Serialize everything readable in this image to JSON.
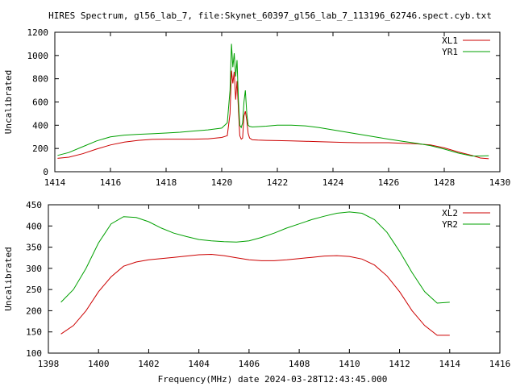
{
  "title": "HIRES Spectrum, gl56_lab_7, file:Skynet_60397_gl56_lab_7_113196_62746.spect.cyb.txt",
  "xlabel": "Frequency(MHz) date 2024-03-28T12:43:45.000",
  "colors": {
    "red": "#cc0000",
    "green": "#00a000"
  },
  "chart_data": [
    {
      "type": "line",
      "ylabel": "Uncalibrated",
      "xlim": [
        1414,
        1430
      ],
      "ylim": [
        0,
        1200
      ],
      "xticks": [
        1414,
        1416,
        1418,
        1420,
        1422,
        1424,
        1426,
        1428,
        1430
      ],
      "yticks": [
        0,
        200,
        400,
        600,
        800,
        1000,
        1200
      ],
      "legend_position": "top-right",
      "series": [
        {
          "name": "XL1",
          "color": "#cc0000",
          "x": [
            1414.1,
            1414.5,
            1415.0,
            1415.5,
            1416.0,
            1416.5,
            1417.0,
            1417.5,
            1418.0,
            1418.5,
            1419.0,
            1419.5,
            1420.0,
            1420.2,
            1420.3,
            1420.35,
            1420.4,
            1420.45,
            1420.5,
            1420.55,
            1420.6,
            1420.65,
            1420.7,
            1420.75,
            1420.8,
            1420.85,
            1420.9,
            1420.95,
            1421.0,
            1421.1,
            1421.3,
            1421.6,
            1422.0,
            1422.5,
            1423.0,
            1423.5,
            1424.0,
            1424.5,
            1425.0,
            1425.5,
            1426.0,
            1426.5,
            1427.0,
            1427.5,
            1428.0,
            1428.5,
            1429.0,
            1429.3,
            1429.6
          ],
          "y": [
            115,
            125,
            155,
            195,
            230,
            255,
            270,
            278,
            280,
            280,
            280,
            283,
            295,
            310,
            500,
            870,
            760,
            860,
            620,
            780,
            540,
            310,
            280,
            290,
            480,
            520,
            440,
            330,
            290,
            275,
            272,
            270,
            268,
            265,
            262,
            258,
            255,
            252,
            250,
            250,
            250,
            245,
            240,
            230,
            205,
            170,
            140,
            118,
            112
          ]
        },
        {
          "name": "YR1",
          "color": "#00a000",
          "x": [
            1414.1,
            1414.5,
            1415.0,
            1415.5,
            1416.0,
            1416.5,
            1417.0,
            1417.5,
            1418.0,
            1418.5,
            1419.0,
            1419.5,
            1420.0,
            1420.2,
            1420.3,
            1420.35,
            1420.4,
            1420.45,
            1420.5,
            1420.55,
            1420.6,
            1420.65,
            1420.7,
            1420.75,
            1420.8,
            1420.85,
            1420.9,
            1420.95,
            1421.0,
            1421.1,
            1421.3,
            1421.6,
            1422.0,
            1422.5,
            1423.0,
            1423.5,
            1424.0,
            1424.5,
            1425.0,
            1425.5,
            1426.0,
            1426.5,
            1427.0,
            1427.5,
            1428.0,
            1428.5,
            1429.0,
            1429.3,
            1429.6
          ],
          "y": [
            140,
            165,
            215,
            265,
            300,
            315,
            322,
            327,
            333,
            340,
            350,
            360,
            375,
            420,
            700,
            1100,
            900,
            1020,
            820,
            960,
            620,
            400,
            380,
            420,
            600,
            700,
            500,
            400,
            390,
            385,
            388,
            392,
            400,
            400,
            395,
            380,
            360,
            340,
            320,
            300,
            280,
            262,
            245,
            225,
            195,
            160,
            135,
            135,
            138
          ]
        }
      ]
    },
    {
      "type": "line",
      "ylabel": "Uncalibrated",
      "xlim": [
        1398,
        1416
      ],
      "ylim": [
        100,
        450
      ],
      "xticks": [
        1398,
        1400,
        1402,
        1404,
        1406,
        1408,
        1410,
        1412,
        1414,
        1416
      ],
      "yticks": [
        100,
        150,
        200,
        250,
        300,
        350,
        400,
        450
      ],
      "legend_position": "top-right",
      "series": [
        {
          "name": "XL2",
          "color": "#cc0000",
          "x": [
            1398.5,
            1399.0,
            1399.5,
            1400.0,
            1400.5,
            1401.0,
            1401.5,
            1402.0,
            1402.5,
            1403.0,
            1403.5,
            1404.0,
            1404.5,
            1405.0,
            1405.5,
            1406.0,
            1406.5,
            1407.0,
            1407.5,
            1408.0,
            1408.5,
            1409.0,
            1409.5,
            1410.0,
            1410.5,
            1411.0,
            1411.5,
            1412.0,
            1412.5,
            1413.0,
            1413.5,
            1414.0
          ],
          "y": [
            145,
            165,
            200,
            245,
            280,
            305,
            315,
            320,
            323,
            326,
            329,
            332,
            333,
            330,
            325,
            320,
            318,
            318,
            320,
            323,
            326,
            329,
            330,
            328,
            322,
            308,
            282,
            245,
            200,
            165,
            142,
            142
          ]
        },
        {
          "name": "YR2",
          "color": "#00a000",
          "x": [
            1398.5,
            1399.0,
            1399.5,
            1400.0,
            1400.5,
            1401.0,
            1401.5,
            1402.0,
            1402.5,
            1403.0,
            1403.5,
            1404.0,
            1404.5,
            1405.0,
            1405.5,
            1406.0,
            1406.5,
            1407.0,
            1407.5,
            1408.0,
            1408.5,
            1409.0,
            1409.5,
            1410.0,
            1410.5,
            1411.0,
            1411.5,
            1412.0,
            1412.5,
            1413.0,
            1413.5,
            1414.0
          ],
          "y": [
            220,
            250,
            300,
            360,
            405,
            422,
            420,
            410,
            395,
            383,
            375,
            368,
            365,
            363,
            362,
            365,
            373,
            383,
            395,
            405,
            415,
            423,
            430,
            433,
            430,
            415,
            385,
            340,
            290,
            245,
            218,
            220
          ]
        }
      ]
    }
  ]
}
